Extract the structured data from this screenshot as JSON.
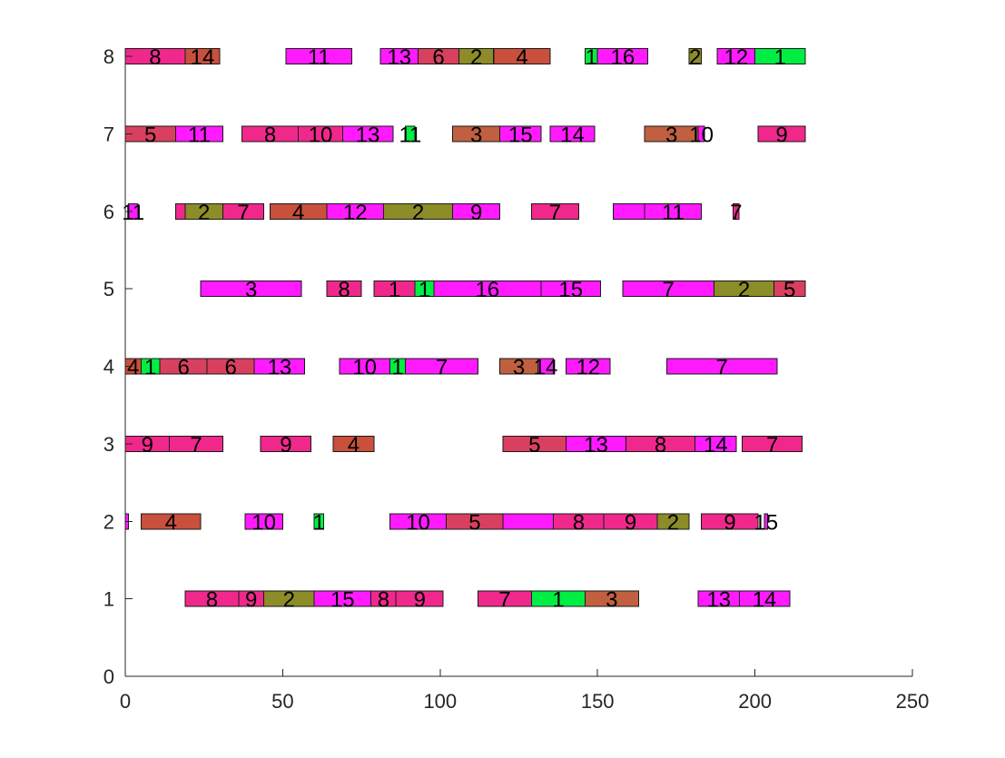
{
  "chart_data": {
    "type": "gantt",
    "title": "",
    "xlabel": "",
    "ylabel": "",
    "xlim": [
      0,
      250
    ],
    "ylim": [
      0,
      8
    ],
    "x_ticks": [
      0,
      50,
      100,
      150,
      200,
      250
    ],
    "y_ticks": [
      0,
      1,
      2,
      3,
      4,
      5,
      6,
      7,
      8
    ],
    "grid": false,
    "colors": {
      "magenta": "#ff1aff",
      "pink": "#f0288c",
      "crimson": "#d94060",
      "rust": "#c8503c",
      "brown": "#c06040",
      "olive": "#8c8c28",
      "green": "#00ee44"
    },
    "bars": [
      {
        "y": 1,
        "start": 19,
        "end": 36,
        "label": "8",
        "color": "pink"
      },
      {
        "y": 1,
        "start": 36,
        "end": 44,
        "label": "9",
        "color": "pink"
      },
      {
        "y": 1,
        "start": 44,
        "end": 60,
        "label": "2",
        "color": "olive"
      },
      {
        "y": 1,
        "start": 60,
        "end": 78,
        "label": "15",
        "color": "magenta"
      },
      {
        "y": 1,
        "start": 78,
        "end": 86,
        "label": "8",
        "color": "pink"
      },
      {
        "y": 1,
        "start": 86,
        "end": 101,
        "label": "9",
        "color": "pink"
      },
      {
        "y": 1,
        "start": 112,
        "end": 129,
        "label": "7",
        "color": "pink"
      },
      {
        "y": 1,
        "start": 129,
        "end": 146,
        "label": "1",
        "color": "green"
      },
      {
        "y": 1,
        "start": 146,
        "end": 163,
        "label": "3",
        "color": "brown"
      },
      {
        "y": 1,
        "start": 182,
        "end": 195,
        "label": "13",
        "color": "magenta"
      },
      {
        "y": 1,
        "start": 195,
        "end": 211,
        "label": "14",
        "color": "magenta"
      },
      {
        "y": 2,
        "start": 0,
        "end": 1,
        "label": "",
        "color": "magenta"
      },
      {
        "y": 2,
        "start": 5,
        "end": 24,
        "label": "4",
        "color": "rust"
      },
      {
        "y": 2,
        "start": 38,
        "end": 50,
        "label": "10",
        "color": "magenta"
      },
      {
        "y": 2,
        "start": 60,
        "end": 63,
        "label": "1",
        "color": "green"
      },
      {
        "y": 2,
        "start": 84,
        "end": 102,
        "label": "10",
        "color": "magenta"
      },
      {
        "y": 2,
        "start": 102,
        "end": 120,
        "label": "5",
        "color": "crimson"
      },
      {
        "y": 2,
        "start": 120,
        "end": 136,
        "label": "",
        "color": "magenta"
      },
      {
        "y": 2,
        "start": 136,
        "end": 152,
        "label": "8",
        "color": "pink"
      },
      {
        "y": 2,
        "start": 152,
        "end": 169,
        "label": "9",
        "color": "pink"
      },
      {
        "y": 2,
        "start": 169,
        "end": 179,
        "label": "2",
        "color": "olive"
      },
      {
        "y": 2,
        "start": 183,
        "end": 201,
        "label": "9",
        "color": "pink"
      },
      {
        "y": 2,
        "start": 203,
        "end": 204,
        "label": "15",
        "color": "magenta"
      },
      {
        "y": 3,
        "start": 0,
        "end": 14,
        "label": "9",
        "color": "pink"
      },
      {
        "y": 3,
        "start": 14,
        "end": 31,
        "label": "7",
        "color": "pink"
      },
      {
        "y": 3,
        "start": 43,
        "end": 59,
        "label": "9",
        "color": "pink"
      },
      {
        "y": 3,
        "start": 66,
        "end": 79,
        "label": "4",
        "color": "rust"
      },
      {
        "y": 3,
        "start": 120,
        "end": 140,
        "label": "5",
        "color": "crimson"
      },
      {
        "y": 3,
        "start": 140,
        "end": 159,
        "label": "13",
        "color": "magenta"
      },
      {
        "y": 3,
        "start": 159,
        "end": 181,
        "label": "8",
        "color": "pink"
      },
      {
        "y": 3,
        "start": 181,
        "end": 194,
        "label": "14",
        "color": "magenta"
      },
      {
        "y": 3,
        "start": 196,
        "end": 215,
        "label": "7",
        "color": "pink"
      },
      {
        "y": 4,
        "start": 0,
        "end": 5,
        "label": "4",
        "color": "rust"
      },
      {
        "y": 4,
        "start": 5,
        "end": 11,
        "label": "1",
        "color": "green"
      },
      {
        "y": 4,
        "start": 11,
        "end": 26,
        "label": "6",
        "color": "crimson"
      },
      {
        "y": 4,
        "start": 26,
        "end": 41,
        "label": "6",
        "color": "crimson"
      },
      {
        "y": 4,
        "start": 41,
        "end": 57,
        "label": "13",
        "color": "magenta"
      },
      {
        "y": 4,
        "start": 68,
        "end": 84,
        "label": "10",
        "color": "magenta"
      },
      {
        "y": 4,
        "start": 84,
        "end": 89,
        "label": "1",
        "color": "green"
      },
      {
        "y": 4,
        "start": 89,
        "end": 112,
        "label": "7",
        "color": "magenta"
      },
      {
        "y": 4,
        "start": 119,
        "end": 131,
        "label": "3",
        "color": "brown"
      },
      {
        "y": 4,
        "start": 131,
        "end": 136,
        "label": "14",
        "color": "magenta"
      },
      {
        "y": 4,
        "start": 140,
        "end": 154,
        "label": "12",
        "color": "magenta"
      },
      {
        "y": 4,
        "start": 172,
        "end": 207,
        "label": "7",
        "color": "magenta"
      },
      {
        "y": 5,
        "start": 24,
        "end": 56,
        "label": "3",
        "color": "magenta"
      },
      {
        "y": 5,
        "start": 64,
        "end": 75,
        "label": "8",
        "color": "pink"
      },
      {
        "y": 5,
        "start": 79,
        "end": 92,
        "label": "1",
        "color": "pink"
      },
      {
        "y": 5,
        "start": 92,
        "end": 98,
        "label": "1",
        "color": "green"
      },
      {
        "y": 5,
        "start": 98,
        "end": 132,
        "label": "16",
        "color": "magenta"
      },
      {
        "y": 5,
        "start": 132,
        "end": 151,
        "label": "15",
        "color": "magenta"
      },
      {
        "y": 5,
        "start": 158,
        "end": 187,
        "label": "7",
        "color": "magenta"
      },
      {
        "y": 5,
        "start": 187,
        "end": 206,
        "label": "2",
        "color": "olive"
      },
      {
        "y": 5,
        "start": 206,
        "end": 216,
        "label": "5",
        "color": "crimson"
      },
      {
        "y": 6,
        "start": 1,
        "end": 4,
        "label": "11",
        "color": "magenta"
      },
      {
        "y": 6,
        "start": 16,
        "end": 19,
        "label": "",
        "color": "pink"
      },
      {
        "y": 6,
        "start": 19,
        "end": 31,
        "label": "2",
        "color": "olive"
      },
      {
        "y": 6,
        "start": 31,
        "end": 44,
        "label": "7",
        "color": "pink"
      },
      {
        "y": 6,
        "start": 46,
        "end": 64,
        "label": "4",
        "color": "rust"
      },
      {
        "y": 6,
        "start": 64,
        "end": 82,
        "label": "12",
        "color": "magenta"
      },
      {
        "y": 6,
        "start": 82,
        "end": 104,
        "label": "2",
        "color": "olive"
      },
      {
        "y": 6,
        "start": 104,
        "end": 119,
        "label": "9",
        "color": "magenta"
      },
      {
        "y": 6,
        "start": 129,
        "end": 144,
        "label": "7",
        "color": "pink"
      },
      {
        "y": 6,
        "start": 155,
        "end": 165,
        "label": "",
        "color": "magenta"
      },
      {
        "y": 6,
        "start": 165,
        "end": 183,
        "label": "11",
        "color": "magenta"
      },
      {
        "y": 6,
        "start": 193,
        "end": 195,
        "label": "7",
        "color": "pink"
      },
      {
        "y": 7,
        "start": 0,
        "end": 16,
        "label": "5",
        "color": "crimson"
      },
      {
        "y": 7,
        "start": 16,
        "end": 31,
        "label": "11",
        "color": "magenta"
      },
      {
        "y": 7,
        "start": 37,
        "end": 55,
        "label": "8",
        "color": "pink"
      },
      {
        "y": 7,
        "start": 55,
        "end": 69,
        "label": "10",
        "color": "pink"
      },
      {
        "y": 7,
        "start": 69,
        "end": 85,
        "label": "13",
        "color": "magenta"
      },
      {
        "y": 7,
        "start": 89,
        "end": 92,
        "label": "11",
        "color": "green"
      },
      {
        "y": 7,
        "start": 104,
        "end": 119,
        "label": "3",
        "color": "brown"
      },
      {
        "y": 7,
        "start": 119,
        "end": 132,
        "label": "15",
        "color": "magenta"
      },
      {
        "y": 7,
        "start": 135,
        "end": 149,
        "label": "14",
        "color": "magenta"
      },
      {
        "y": 7,
        "start": 165,
        "end": 182,
        "label": "3",
        "color": "brown"
      },
      {
        "y": 7,
        "start": 182,
        "end": 184,
        "label": "10",
        "color": "magenta"
      },
      {
        "y": 7,
        "start": 201,
        "end": 216,
        "label": "9",
        "color": "pink"
      },
      {
        "y": 8,
        "start": 0,
        "end": 19,
        "label": "8",
        "color": "pink"
      },
      {
        "y": 8,
        "start": 19,
        "end": 30,
        "label": "14",
        "color": "rust"
      },
      {
        "y": 8,
        "start": 51,
        "end": 72,
        "label": "11",
        "color": "magenta"
      },
      {
        "y": 8,
        "start": 81,
        "end": 93,
        "label": "13",
        "color": "magenta"
      },
      {
        "y": 8,
        "start": 93,
        "end": 106,
        "label": "6",
        "color": "crimson"
      },
      {
        "y": 8,
        "start": 106,
        "end": 117,
        "label": "2",
        "color": "olive"
      },
      {
        "y": 8,
        "start": 117,
        "end": 135,
        "label": "4",
        "color": "rust"
      },
      {
        "y": 8,
        "start": 146,
        "end": 150,
        "label": "1",
        "color": "green"
      },
      {
        "y": 8,
        "start": 150,
        "end": 166,
        "label": "16",
        "color": "magenta"
      },
      {
        "y": 8,
        "start": 179,
        "end": 183,
        "label": "2",
        "color": "olive"
      },
      {
        "y": 8,
        "start": 188,
        "end": 200,
        "label": "12",
        "color": "magenta"
      },
      {
        "y": 8,
        "start": 200,
        "end": 216,
        "label": "1",
        "color": "green"
      }
    ]
  }
}
